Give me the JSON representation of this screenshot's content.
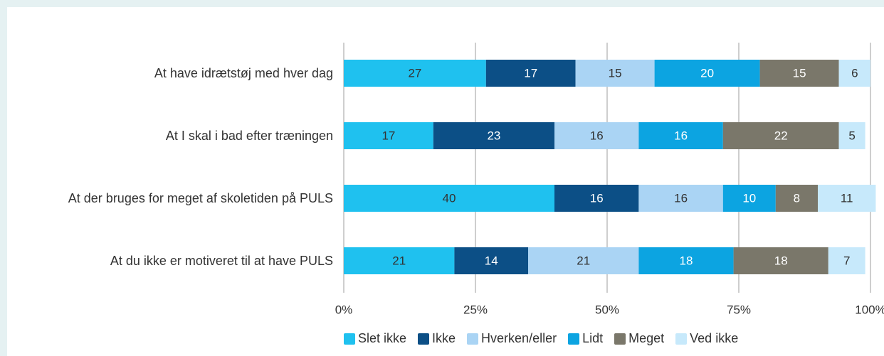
{
  "chart_data": {
    "type": "stacked_bar_horizontal",
    "categories": [
      "At have idrætstøj med hver dag",
      "At I skal i bad efter træningen",
      "At der bruges for meget af skoletiden på PULS",
      "At du ikke er motiveret til at have PULS"
    ],
    "series": [
      {
        "name": "Slet ikke",
        "color": "#1fc1ef",
        "values": [
          27,
          17,
          40,
          21
        ]
      },
      {
        "name": "Ikke",
        "color": "#0c4f86",
        "values": [
          17,
          23,
          16,
          14
        ]
      },
      {
        "name": "Hverken/eller",
        "color": "#aad4f4",
        "values": [
          15,
          16,
          16,
          21
        ]
      },
      {
        "name": "Lidt",
        "color": "#0ca4e1",
        "values": [
          20,
          16,
          10,
          18
        ]
      },
      {
        "name": "Meget",
        "color": "#7a776a",
        "values": [
          15,
          22,
          8,
          18
        ]
      },
      {
        "name": "Ved ikke",
        "color": "#c7e9fb",
        "values": [
          6,
          5,
          11,
          7
        ]
      }
    ],
    "xlim": [
      0,
      100
    ],
    "xticks": [
      {
        "value": 0,
        "label": "0%"
      },
      {
        "value": 25,
        "label": "25%"
      },
      {
        "value": 50,
        "label": "50%"
      },
      {
        "value": 75,
        "label": "75%"
      },
      {
        "value": 100,
        "label": "100%"
      }
    ],
    "grid": true,
    "legend": "bottom"
  }
}
